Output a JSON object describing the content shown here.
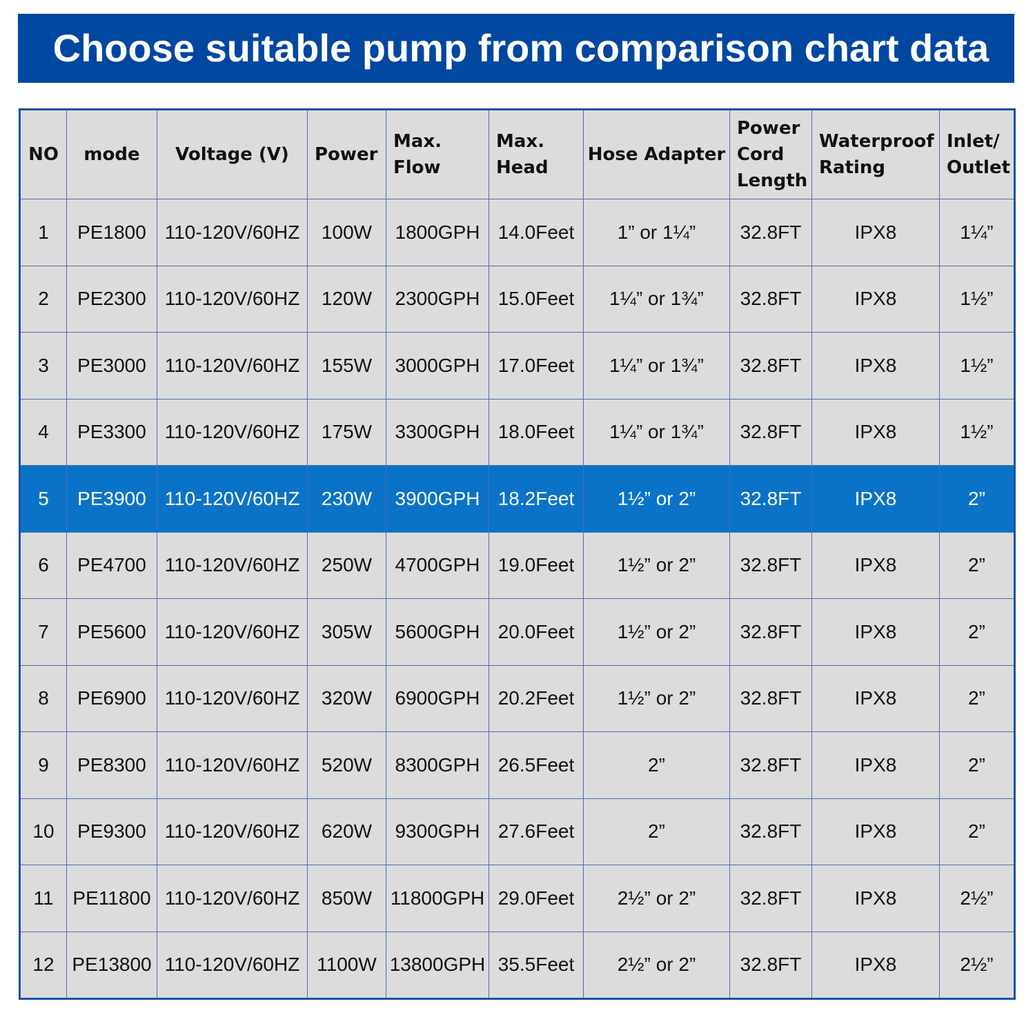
{
  "header": {
    "title": "Choose suitable pump from comparison chart data"
  },
  "table": {
    "columns": [
      "NO",
      "mode",
      "Voltage (V)",
      "Power",
      "Max.\nFlow",
      "Max.\nHead",
      "Hose Adapter",
      "Power\nCord\nLength",
      "Waterproof\nRating",
      "Inlet/\nOutlet"
    ],
    "rows": [
      [
        "1",
        "PE1800",
        "110-120V/60HZ",
        "100W",
        "1800GPH",
        "14.0Feet",
        "1” or 1¼”",
        "32.8FT",
        "IPX8",
        "1¼”"
      ],
      [
        "2",
        "PE2300",
        "110-120V/60HZ",
        "120W",
        "2300GPH",
        "15.0Feet",
        "1¼” or 1¾”",
        "32.8FT",
        "IPX8",
        "1½”"
      ],
      [
        "3",
        "PE3000",
        "110-120V/60HZ",
        "155W",
        "3000GPH",
        "17.0Feet",
        "1¼” or 1¾”",
        "32.8FT",
        "IPX8",
        "1½”"
      ],
      [
        "4",
        "PE3300",
        "110-120V/60HZ",
        "175W",
        "3300GPH",
        "18.0Feet",
        "1¼” or 1¾”",
        "32.8FT",
        "IPX8",
        "1½”"
      ],
      [
        "5",
        "PE3900",
        "110-120V/60HZ",
        "230W",
        "3900GPH",
        "18.2Feet",
        "1½” or 2”",
        "32.8FT",
        "IPX8",
        "2”"
      ],
      [
        "6",
        "PE4700",
        "110-120V/60HZ",
        "250W",
        "4700GPH",
        "19.0Feet",
        "1½” or 2”",
        "32.8FT",
        "IPX8",
        "2”"
      ],
      [
        "7",
        "PE5600",
        "110-120V/60HZ",
        "305W",
        "5600GPH",
        "20.0Feet",
        "1½” or 2”",
        "32.8FT",
        "IPX8",
        "2”"
      ],
      [
        "8",
        "PE6900",
        "110-120V/60HZ",
        "320W",
        "6900GPH",
        "20.2Feet",
        "1½” or 2”",
        "32.8FT",
        "IPX8",
        "2”"
      ],
      [
        "9",
        "PE8300",
        "110-120V/60HZ",
        "520W",
        "8300GPH",
        "26.5Feet",
        "2”",
        "32.8FT",
        "IPX8",
        "2”"
      ],
      [
        "10",
        "PE9300",
        "110-120V/60HZ",
        "620W",
        "9300GPH",
        "27.6Feet",
        "2”",
        "32.8FT",
        "IPX8",
        "2”"
      ],
      [
        "11",
        "PE11800",
        "110-120V/60HZ",
        "850W",
        "11800GPH",
        "29.0Feet",
        "2½” or 2”",
        "32.8FT",
        "IPX8",
        "2½”"
      ],
      [
        "12",
        "PE13800",
        "110-120V/60HZ",
        "1100W",
        "13800GPH",
        "35.5Feet",
        "2½” or 2”",
        "32.8FT",
        "IPX8",
        "2½”"
      ]
    ]
  }
}
